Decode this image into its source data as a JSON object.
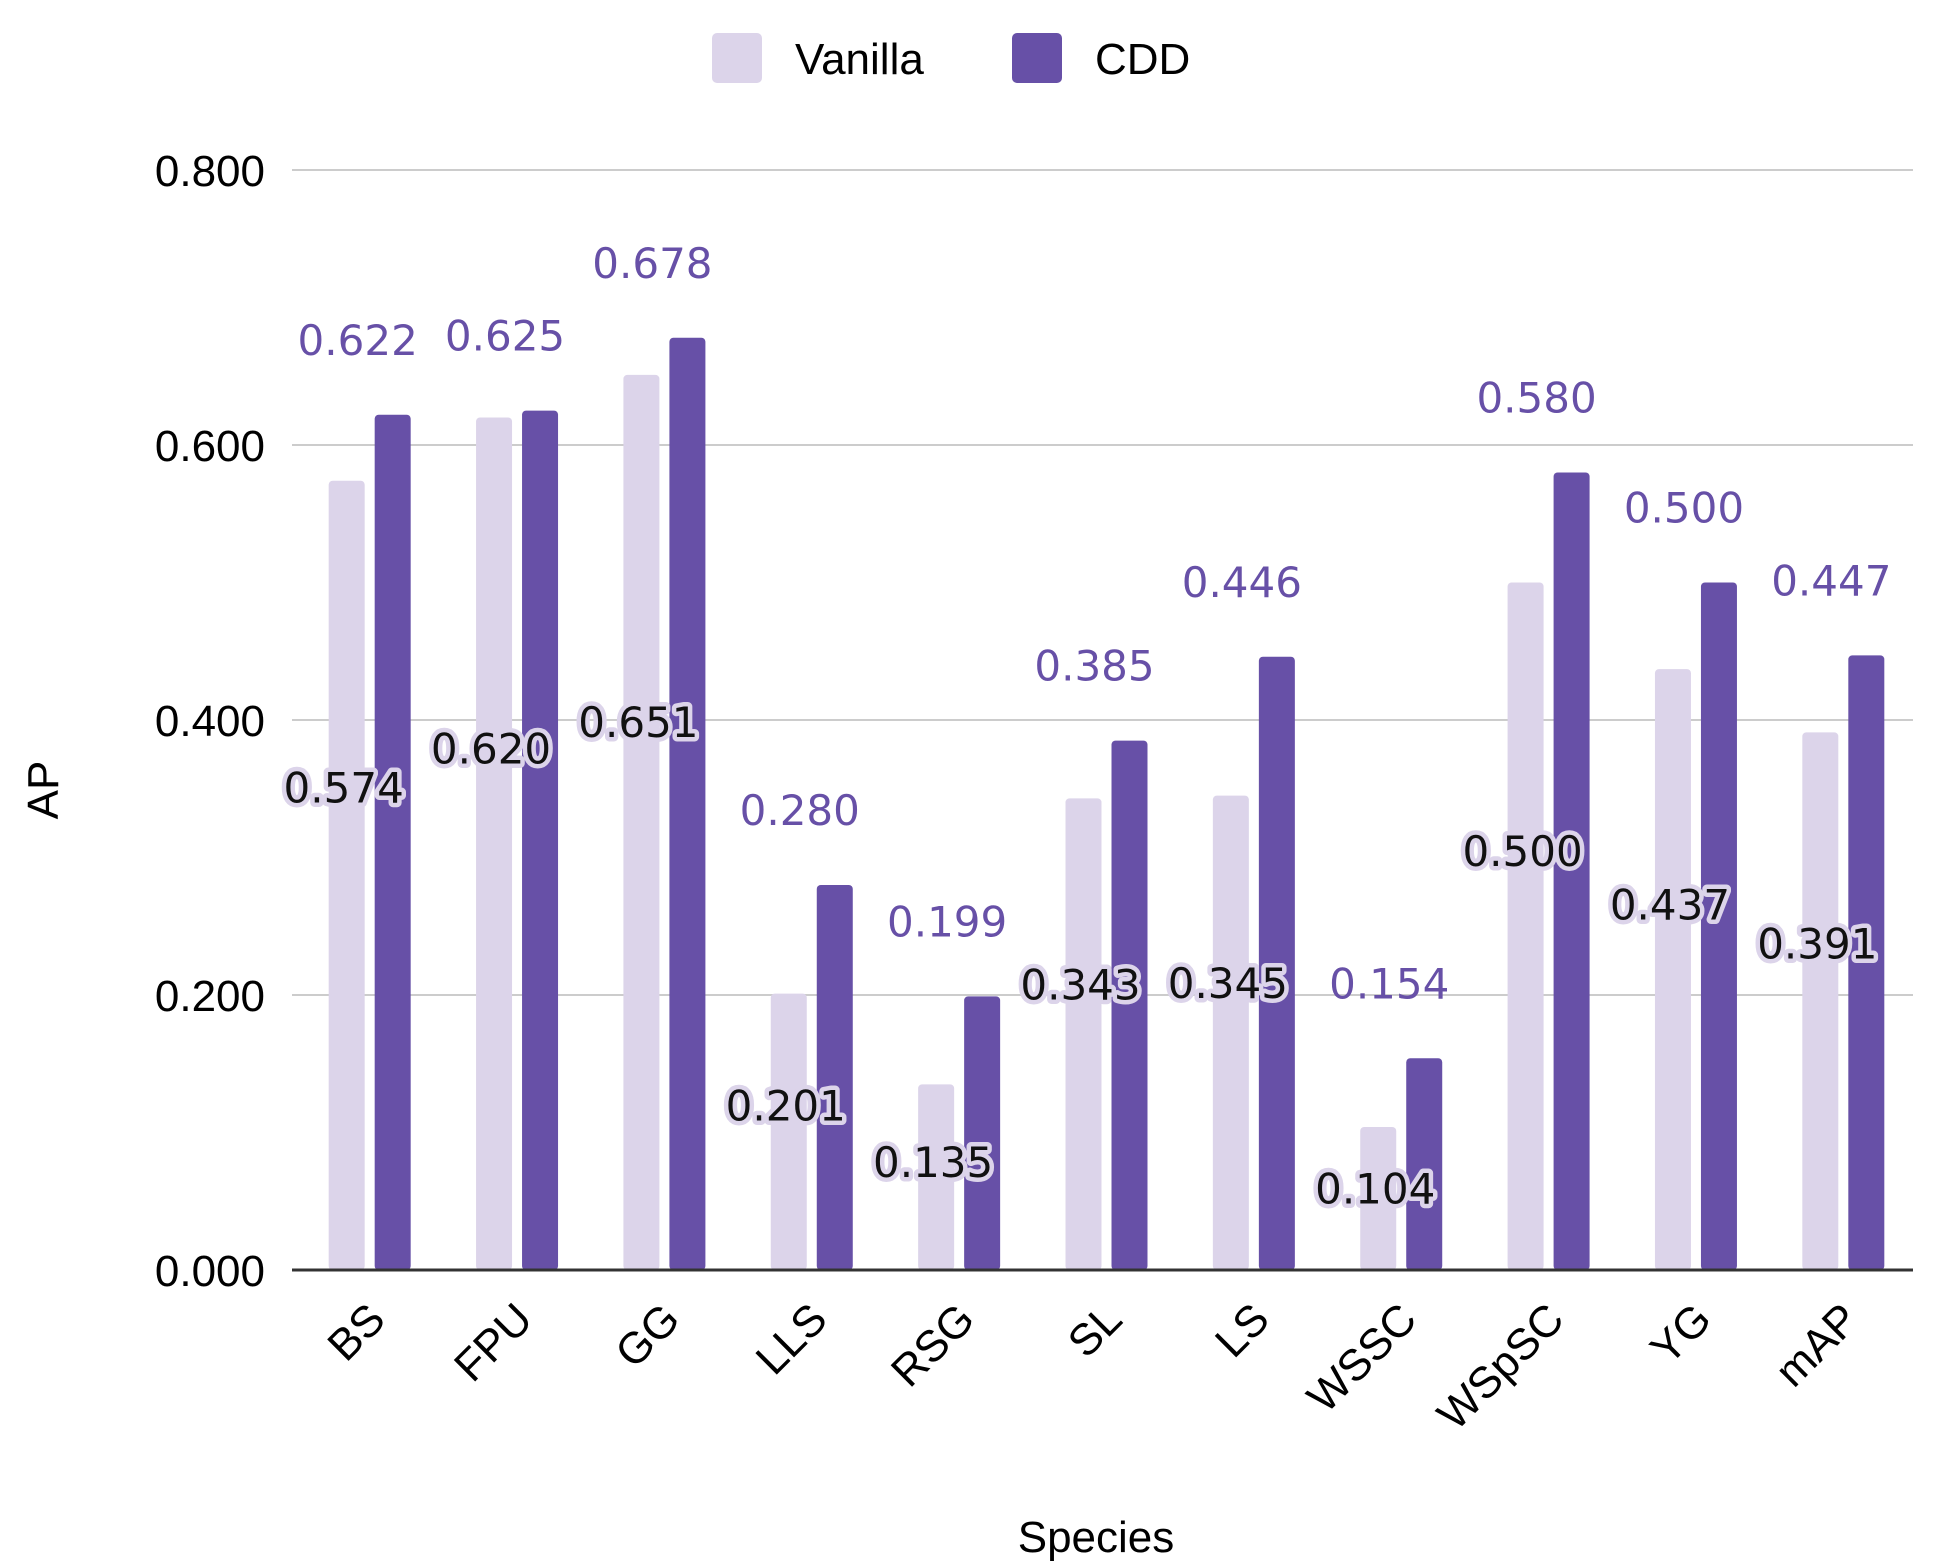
{
  "chart_data": {
    "type": "bar",
    "title": "",
    "xlabel": "Species",
    "ylabel": "AP",
    "ylim": [
      0,
      0.8
    ],
    "yticks": [
      "0.000",
      "0.200",
      "0.400",
      "0.600",
      "0.800"
    ],
    "ytick_values": [
      0,
      0.2,
      0.4,
      0.6,
      0.8
    ],
    "grid": true,
    "legend_position": "top-center",
    "categories": [
      "BS",
      "FPU",
      "GG",
      "LLS",
      "RSG",
      "SL",
      "LS",
      "WSSC",
      "WSpSC",
      "YG",
      "mAP"
    ],
    "series": [
      {
        "name": "Vanilla",
        "color": "#dcd4ea",
        "label_color": "#111111",
        "values": [
          0.574,
          0.62,
          0.651,
          0.201,
          0.135,
          0.343,
          0.345,
          0.104,
          0.5,
          0.437,
          0.391
        ],
        "labels": [
          "0.574",
          "0.620",
          "0.651",
          "0.201",
          "0.135",
          "0.343",
          "0.345",
          "0.104",
          "0.500",
          "0.437",
          "0.391"
        ]
      },
      {
        "name": "CDD",
        "color": "#6750a7",
        "label_color": "#6750a7",
        "values": [
          0.622,
          0.625,
          0.678,
          0.28,
          0.199,
          0.385,
          0.446,
          0.154,
          0.58,
          0.5,
          0.447
        ],
        "labels": [
          "0.622",
          "0.625",
          "0.678",
          "0.280",
          "0.199",
          "0.385",
          "0.446",
          "0.154",
          "0.580",
          "0.500",
          "0.447"
        ]
      }
    ]
  }
}
